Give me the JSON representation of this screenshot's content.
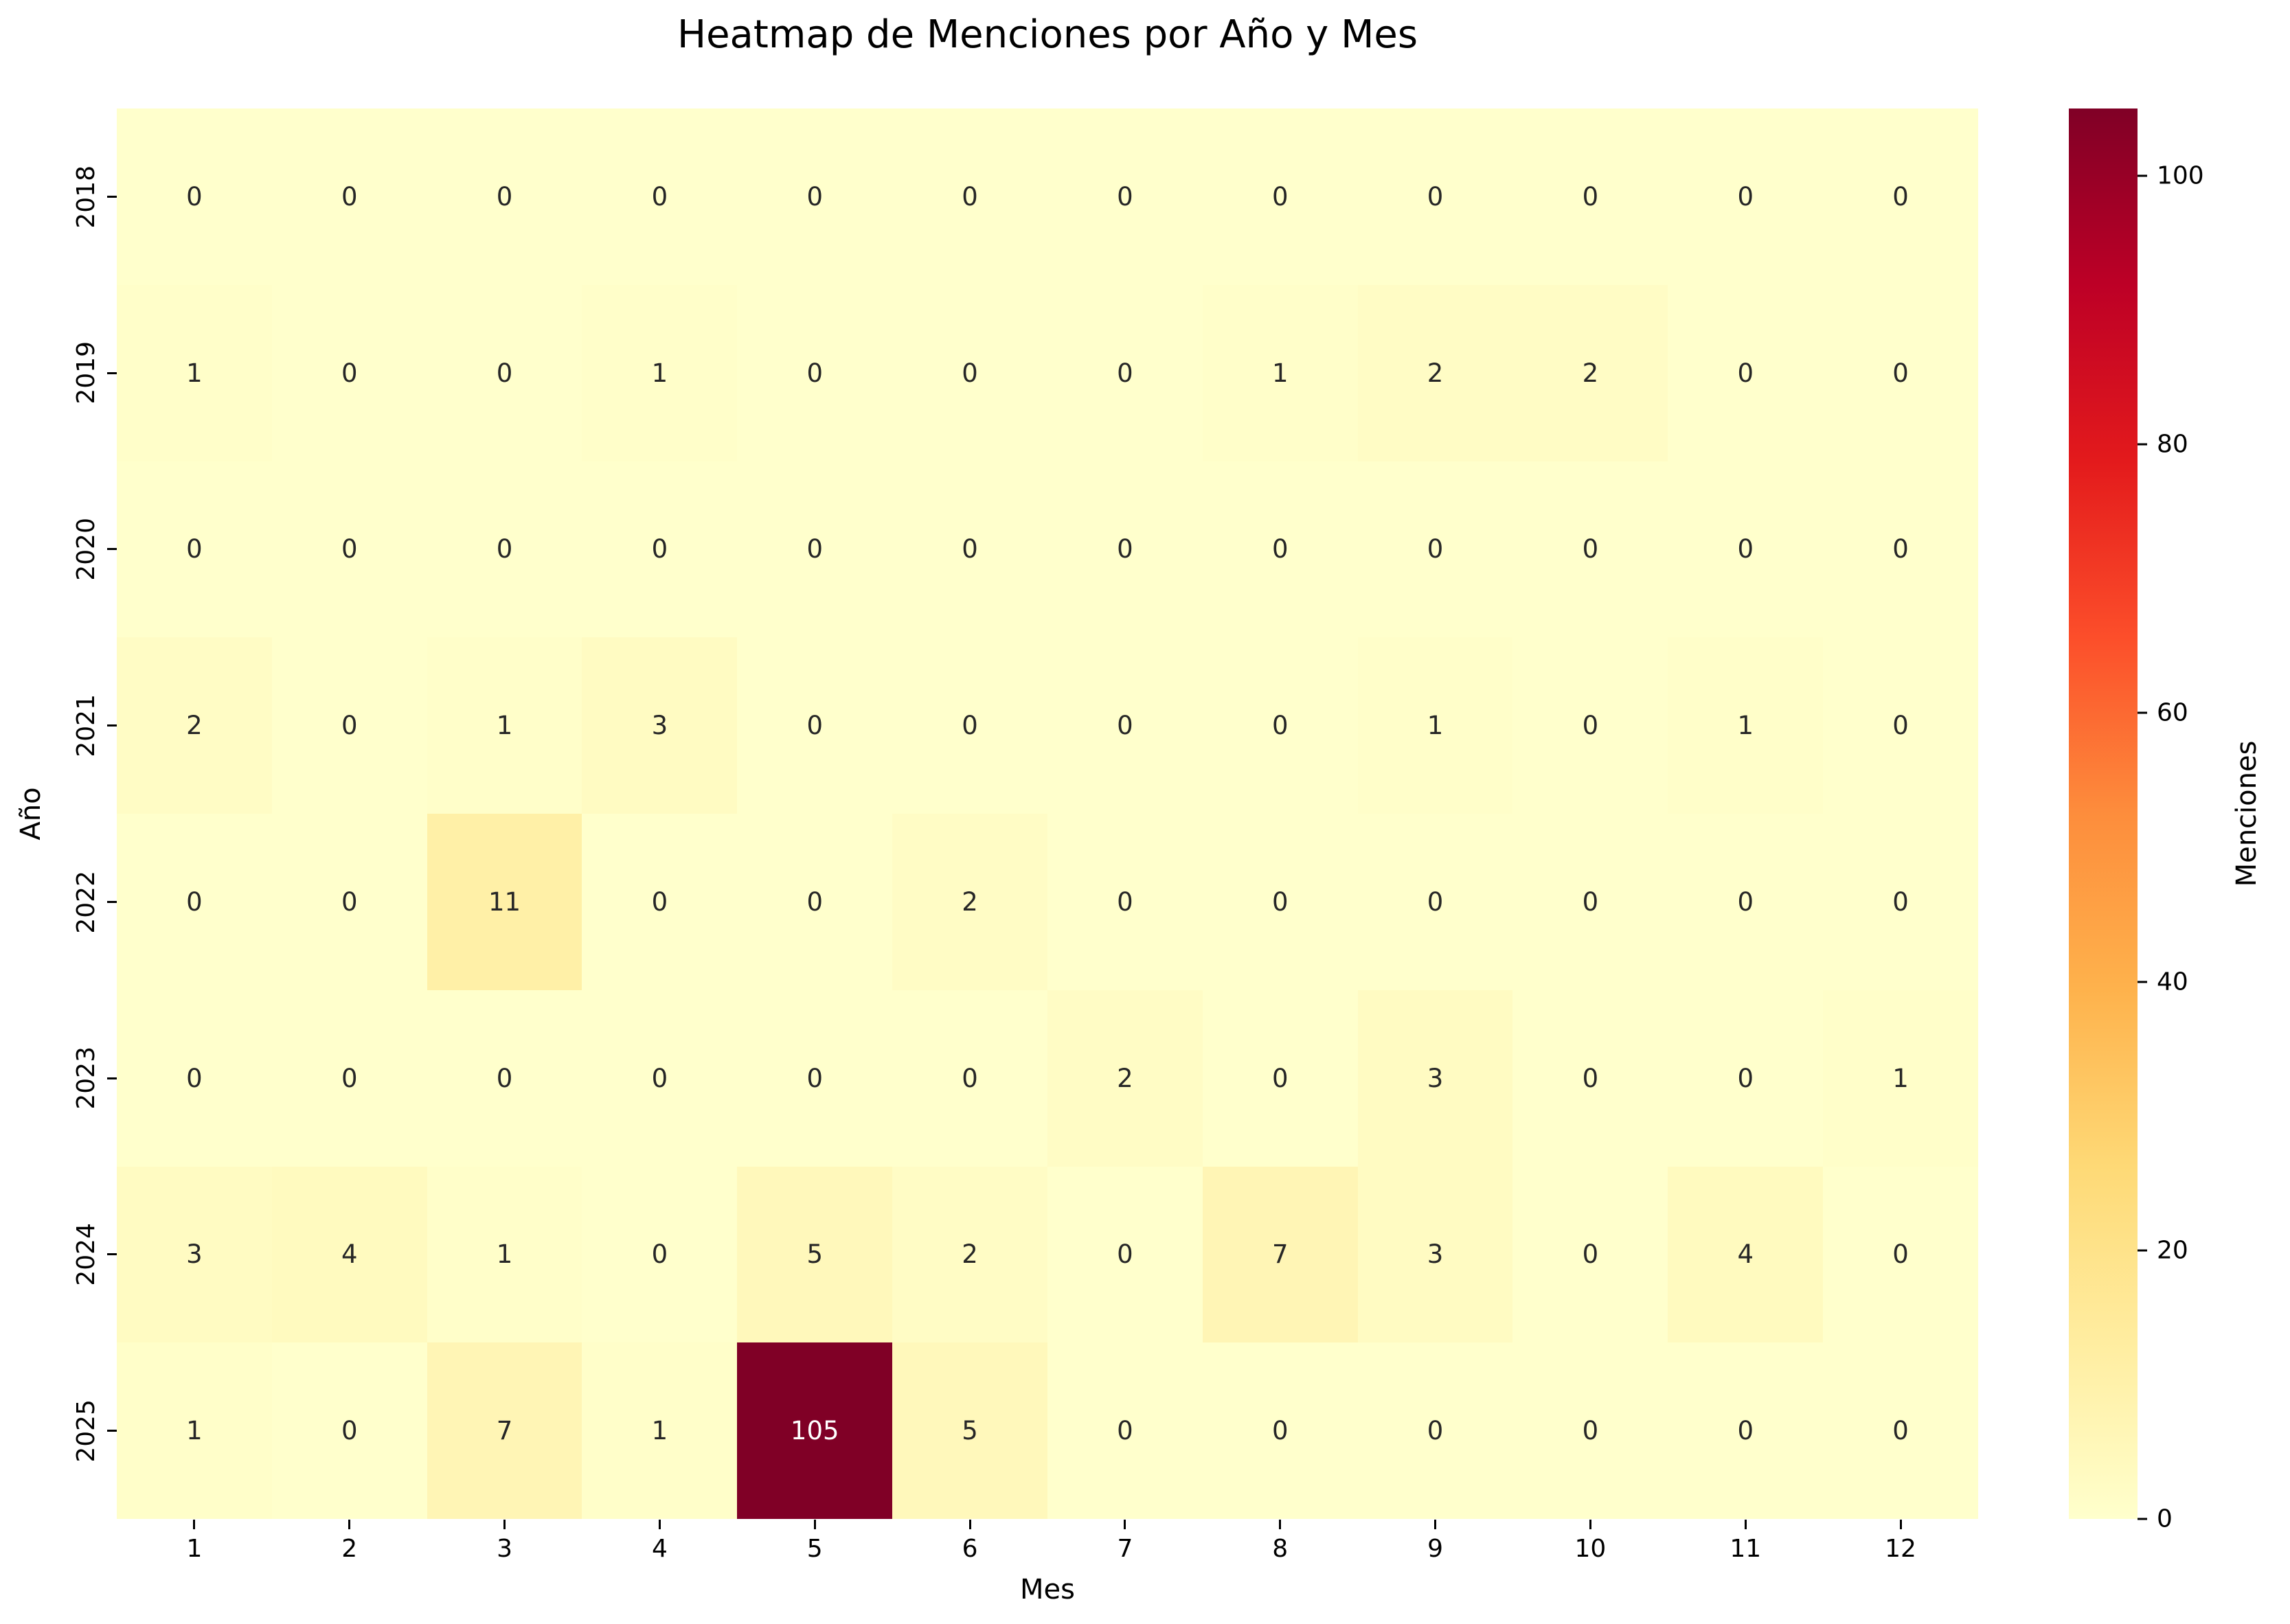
{
  "figure": {
    "background_color": "#ffffff"
  },
  "chart_data": {
    "type": "heatmap",
    "title": "Heatmap de Menciones por Año y Mes",
    "xlabel": "Mes",
    "ylabel": "Año",
    "x_tick_labels": [
      "1",
      "2",
      "3",
      "4",
      "5",
      "6",
      "7",
      "8",
      "9",
      "10",
      "11",
      "12"
    ],
    "rows": [
      {
        "year": "2018",
        "values": [
          0,
          0,
          0,
          0,
          0,
          0,
          0,
          0,
          0,
          0,
          0,
          0
        ]
      },
      {
        "year": "2019",
        "values": [
          1,
          0,
          0,
          1,
          0,
          0,
          0,
          1,
          2,
          2,
          0,
          0
        ]
      },
      {
        "year": "2020",
        "values": [
          0,
          0,
          0,
          0,
          0,
          0,
          0,
          0,
          0,
          0,
          0,
          0
        ]
      },
      {
        "year": "2021",
        "values": [
          2,
          0,
          1,
          3,
          0,
          0,
          0,
          0,
          1,
          0,
          1,
          0
        ]
      },
      {
        "year": "2022",
        "values": [
          0,
          0,
          11,
          0,
          0,
          2,
          0,
          0,
          0,
          0,
          0,
          0
        ]
      },
      {
        "year": "2023",
        "values": [
          0,
          0,
          0,
          0,
          0,
          0,
          2,
          0,
          3,
          0,
          0,
          1
        ]
      },
      {
        "year": "2024",
        "values": [
          3,
          4,
          1,
          0,
          5,
          2,
          0,
          7,
          3,
          0,
          4,
          0
        ]
      },
      {
        "year": "2025",
        "values": [
          1,
          0,
          7,
          1,
          105,
          5,
          0,
          0,
          0,
          0,
          0,
          0
        ]
      }
    ],
    "annotations_shown": true,
    "vmin": 0,
    "vmax": 105,
    "colormap": {
      "name": "YlOrRd",
      "stops": [
        {
          "pos": 0.0,
          "color": "#ffffcc"
        },
        {
          "pos": 0.125,
          "color": "#ffeda0"
        },
        {
          "pos": 0.25,
          "color": "#fed976"
        },
        {
          "pos": 0.375,
          "color": "#feb24c"
        },
        {
          "pos": 0.5,
          "color": "#fd8d3c"
        },
        {
          "pos": 0.625,
          "color": "#fc4e2a"
        },
        {
          "pos": 0.75,
          "color": "#e31a1c"
        },
        {
          "pos": 0.875,
          "color": "#bd0026"
        },
        {
          "pos": 1.0,
          "color": "#800026"
        }
      ]
    },
    "colorbar": {
      "label": "Menciones",
      "ticks": [
        0,
        20,
        40,
        60,
        80,
        100
      ],
      "position": "right"
    },
    "annotation_text_color_light_cells": "#262626",
    "annotation_text_color_dark_cells": "#ffffff",
    "grid": false,
    "legend": false
  }
}
